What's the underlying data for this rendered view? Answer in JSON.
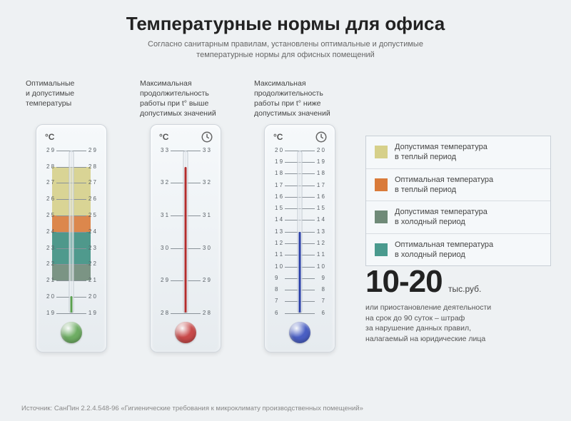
{
  "title": "Температурные нормы для офиса",
  "subtitle": "Согласно санитарным правилам, установлены оптимальные и допустимые\nтемпературные нормы для офисных помещений",
  "unit_label": "°C",
  "colors": {
    "warm_allow": "#d6d08a",
    "warm_opt": "#d97b3a",
    "cold_allow": "#6f8a78",
    "cold_opt": "#4a9a8e",
    "fluid_green": "#5aa04e",
    "fluid_red": "#b22d2d",
    "fluid_blue": "#2a3fa8",
    "bulb_green": "#6fae64",
    "bulb_red": "#c94a4a",
    "bulb_blue": "#4a5fc4",
    "bg": "#eef1f3",
    "panel_border": "#c8cfd6"
  },
  "thermometers": [
    {
      "label": "Оптимальные\nи допустимые\nтемпературы",
      "min": 19,
      "max": 29,
      "fluid_color": "#5aa04e",
      "bulb_color": "#6fae64",
      "fluid_value": 20,
      "show_clock": false,
      "bands": [
        {
          "from": 25,
          "to": 28,
          "color": "#d6d08a"
        },
        {
          "from": 23,
          "to": 25,
          "color": "#d97b3a"
        },
        {
          "from": 21,
          "to": 24,
          "color": "#6f8a78"
        },
        {
          "from": 22,
          "to": 24,
          "color": "#4a9a8e"
        }
      ]
    },
    {
      "label": "Максимальная\nпродолжительность\nработы при t° выше\nдопустимых значений",
      "min": 28,
      "max": 33,
      "fluid_color": "#b22d2d",
      "bulb_color": "#c94a4a",
      "fluid_value": 32.5,
      "show_clock": true,
      "bands": []
    },
    {
      "label": "Максимальная\nпродолжительность\nработы при t° ниже\nдопустимых значений",
      "min": 6,
      "max": 20,
      "fluid_color": "#2a3fa8",
      "bulb_color": "#4a5fc4",
      "fluid_value": 13,
      "show_clock": true,
      "bands": []
    }
  ],
  "legend": [
    {
      "color": "#d6d08a",
      "text": "Допустимая температура\nв теплый период"
    },
    {
      "color": "#d97b3a",
      "text": "Оптимальная температура\nв теплый период"
    },
    {
      "color": "#6f8a78",
      "text": "Допустимая температура\nв холодный период"
    },
    {
      "color": "#4a9a8e",
      "text": "Оптимальная температура\nв холодный период"
    }
  ],
  "penalty": {
    "num": "10-20",
    "unit": "тыс.руб.",
    "desc": "или приостановление деятельности\nна срок до 90 суток – штраф\nза нарушение данных правил,\nналагаемый на юридические лица"
  },
  "source": "Источник: СанПин 2.2.4.548-96 «Гигиенические требования к микроклимату производственных помещений»"
}
